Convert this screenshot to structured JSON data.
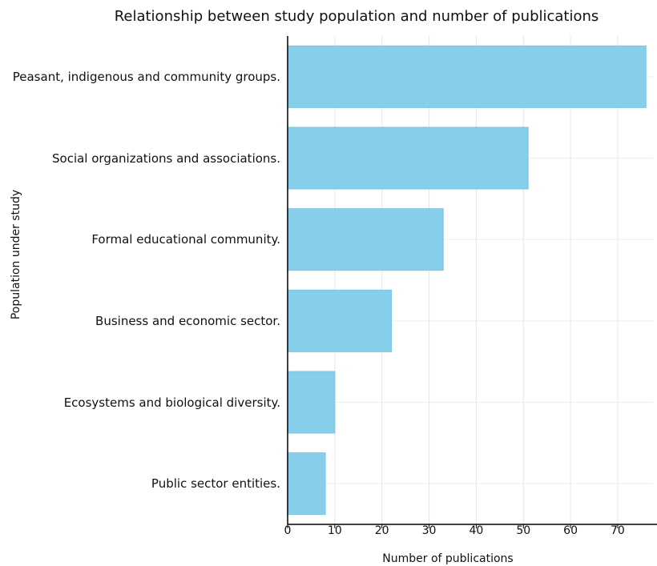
{
  "chart_data": {
    "type": "bar",
    "orientation": "horizontal",
    "title": "Relationship between study population and number of publications",
    "xlabel": "Number of publications",
    "ylabel": "Population under study",
    "categories": [
      "Peasant, indigenous and community groups.",
      "Social organizations and associations.",
      "Formal educational community.",
      "Business and economic sector.",
      "Ecosystems and biological diversity.",
      "Public sector entities."
    ],
    "values": [
      76,
      51,
      33,
      22,
      10,
      8
    ],
    "xlim": [
      0,
      78
    ],
    "xticks": [
      0,
      10,
      20,
      30,
      40,
      50,
      60,
      70
    ],
    "grid": true,
    "bar_color": "#87ceeb"
  }
}
